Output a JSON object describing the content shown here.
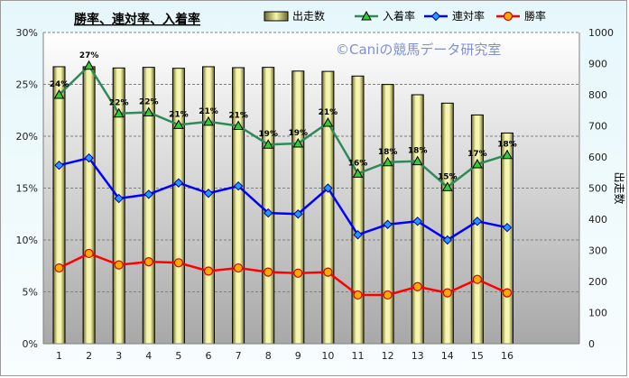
{
  "chart_data": {
    "type": "bar+line",
    "title": "勝率、連対率、入着率",
    "watermark": "©Caniの競馬データ研究室",
    "categories": [
      "1",
      "2",
      "3",
      "4",
      "5",
      "6",
      "7",
      "8",
      "9",
      "10",
      "11",
      "12",
      "13",
      "14",
      "15",
      "16"
    ],
    "left_axis": {
      "ticks": [
        "0%",
        "5%",
        "10%",
        "15%",
        "20%",
        "25%",
        "30%"
      ],
      "range": [
        0,
        30
      ]
    },
    "right_axis": {
      "label": "出走数",
      "ticks": [
        "0",
        "100",
        "200",
        "300",
        "400",
        "500",
        "600",
        "700",
        "800",
        "900",
        "1000"
      ],
      "range": [
        0,
        1000
      ]
    },
    "bar_series": {
      "name": "出走数",
      "values": [
        890,
        890,
        886,
        888,
        885,
        890,
        887,
        888,
        876,
        875,
        860,
        833,
        800,
        773,
        735,
        677
      ],
      "color": "#f0f0a0"
    },
    "line_series": [
      {
        "name": "入着率",
        "color": "#2e8b57",
        "values": [
          24.0,
          26.8,
          22.2,
          22.3,
          21.1,
          21.4,
          21.0,
          19.2,
          19.3,
          21.3,
          16.4,
          17.5,
          17.6,
          15.1,
          17.3,
          18.2
        ],
        "labels": [
          "24%",
          "27%",
          "22%",
          "22%",
          "21%",
          "21%",
          "21%",
          "19%",
          "19%",
          "21%",
          "16%",
          "18%",
          "18%",
          "15%",
          "17%",
          "18%"
        ]
      },
      {
        "name": "連対率",
        "color": "#0000ff",
        "values": [
          17.2,
          17.9,
          14.0,
          14.4,
          15.5,
          14.5,
          15.2,
          12.6,
          12.5,
          15.0,
          10.5,
          11.5,
          11.8,
          10.0,
          11.8,
          11.2
        ]
      },
      {
        "name": "勝率",
        "color": "#ff0000",
        "values": [
          7.3,
          8.7,
          7.6,
          7.9,
          7.8,
          7.0,
          7.3,
          6.9,
          6.8,
          6.9,
          4.7,
          4.7,
          5.5,
          4.9,
          6.2,
          4.9
        ]
      }
    ],
    "grid": true,
    "legend_position": "top"
  }
}
